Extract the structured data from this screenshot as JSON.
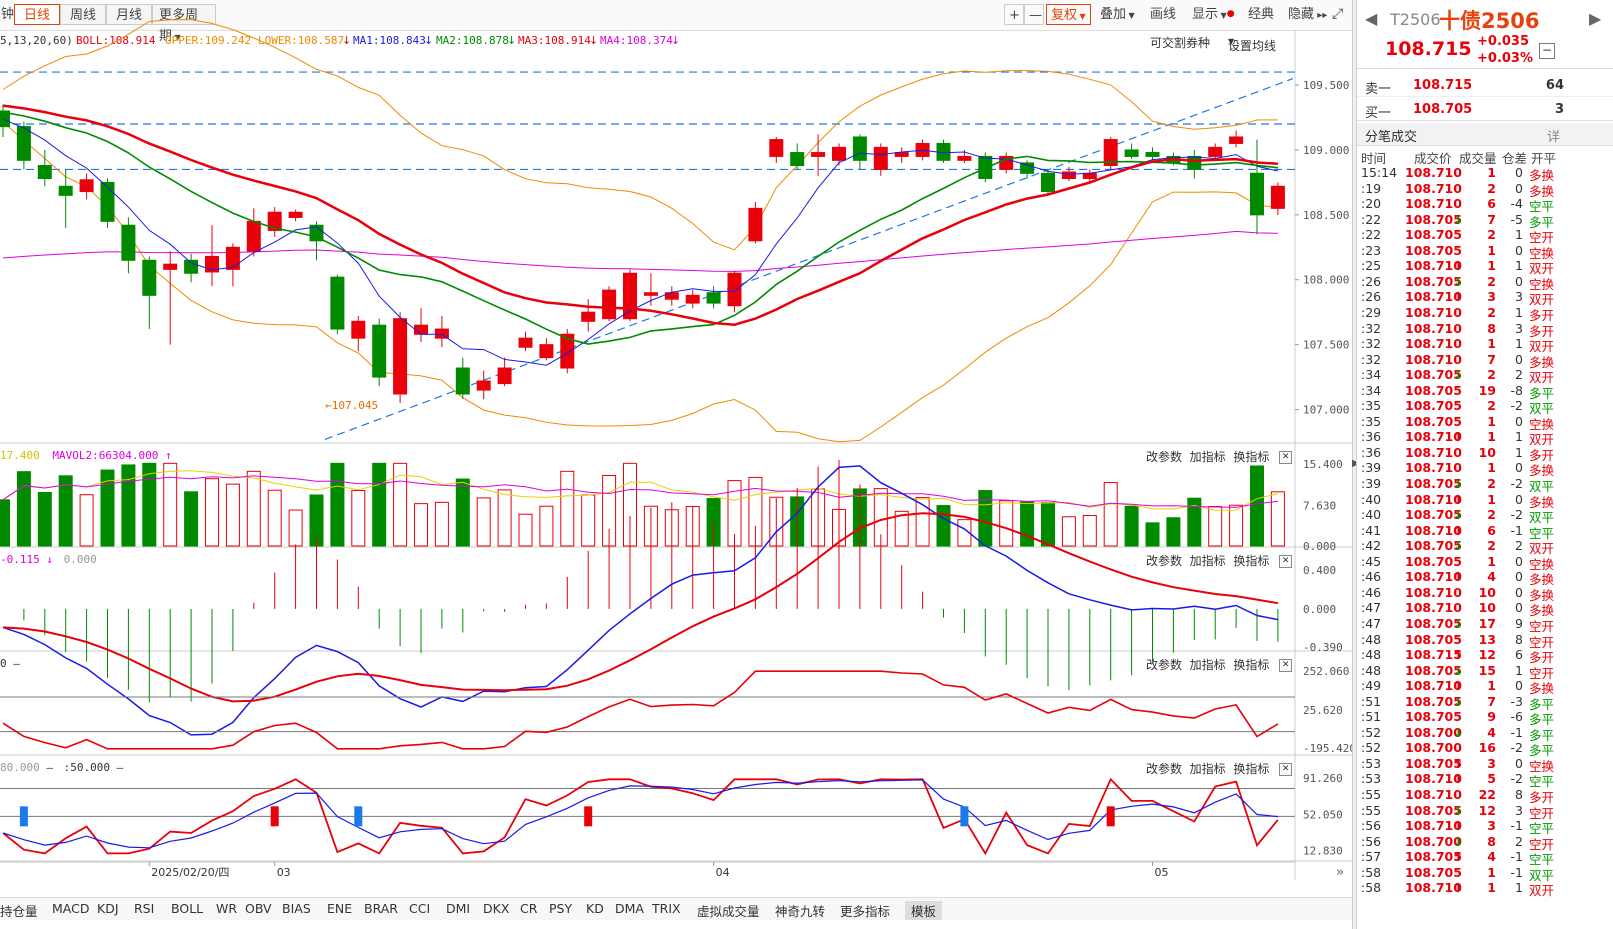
{
  "topbar": {
    "left_cut": "钟",
    "periods": [
      "日线",
      "周线",
      "月线",
      "更多周期"
    ],
    "active_period": "日线",
    "tools": [
      "+",
      "—",
      "复权",
      "叠加",
      "画线",
      "显示",
      "经典",
      "隐藏"
    ]
  },
  "indicator_line": {
    "params": "5,13,20,60)",
    "boll": "BOLL:108.914",
    "upper": "UPPER:109.242",
    "lower": "LOWER:108.587",
    "ma1": "MA1:108.843",
    "ma2": "MA2:108.878",
    "ma3": "MA3:108.914",
    "ma4": "MA4:108.374",
    "tradable": "可交割券种",
    "settings": "设置均线"
  },
  "panel_buttons": [
    "改参数",
    "加指标",
    "换指标"
  ],
  "vol_header": {
    "mavol1": "17.400",
    "mavol2": "MAVOL2:66304.000"
  },
  "macd_header": {
    "v1": "-0.115",
    "v2": "0.000"
  },
  "cci_header": {
    "v1": "0"
  },
  "kdj_header": {
    "v1": "80.000",
    "v2": ":50.000"
  },
  "colors": {
    "up": "#e8000b",
    "down": "#008a00",
    "ma_red": "#e8000b",
    "ma_green": "#008a00",
    "ma_blue": "#1a1ae8",
    "ma_magenta": "#e000e0",
    "boll": "#f08a00",
    "dashed": "#1a7ae8"
  },
  "chart_data": {
    "type": "candlestick",
    "main": {
      "y_ticks": [
        109.5,
        109.0,
        108.5,
        108.0,
        107.5,
        107.0
      ],
      "y_tick_labels": [
        "109.500",
        "109.000",
        "108.500",
        "108.000",
        "107.500",
        "107.000"
      ],
      "ylim": [
        106.75,
        109.77
      ],
      "low_annotation": "107.045",
      "candles": [
        {
          "o": 109.3,
          "c": 109.18,
          "h": 109.35,
          "l": 109.1
        },
        {
          "o": 109.18,
          "c": 108.92,
          "h": 109.22,
          "l": 108.85
        },
        {
          "o": 108.88,
          "c": 108.78,
          "h": 109.0,
          "l": 108.72
        },
        {
          "o": 108.72,
          "c": 108.65,
          "h": 108.85,
          "l": 108.4
        },
        {
          "o": 108.68,
          "c": 108.77,
          "h": 108.82,
          "l": 108.62
        },
        {
          "o": 108.75,
          "c": 108.45,
          "h": 108.78,
          "l": 108.4
        },
        {
          "o": 108.42,
          "c": 108.15,
          "h": 108.48,
          "l": 108.05
        },
        {
          "o": 108.15,
          "c": 107.88,
          "h": 108.18,
          "l": 107.62
        },
        {
          "o": 108.08,
          "c": 108.12,
          "h": 108.22,
          "l": 107.5
        },
        {
          "o": 108.15,
          "c": 108.05,
          "h": 108.2,
          "l": 107.98
        },
        {
          "o": 108.06,
          "c": 108.18,
          "h": 108.42,
          "l": 107.95
        },
        {
          "o": 108.08,
          "c": 108.25,
          "h": 108.28,
          "l": 107.95
        },
        {
          "o": 108.22,
          "c": 108.45,
          "h": 108.55,
          "l": 108.18
        },
        {
          "o": 108.38,
          "c": 108.52,
          "h": 108.56,
          "l": 108.33
        },
        {
          "o": 108.48,
          "c": 108.52,
          "h": 108.54,
          "l": 108.45
        },
        {
          "o": 108.42,
          "c": 108.3,
          "h": 108.45,
          "l": 108.15
        },
        {
          "o": 108.02,
          "c": 107.62,
          "h": 108.04,
          "l": 107.58
        },
        {
          "o": 107.55,
          "c": 107.68,
          "h": 107.72,
          "l": 107.45
        },
        {
          "o": 107.65,
          "c": 107.25,
          "h": 107.7,
          "l": 107.18
        },
        {
          "o": 107.12,
          "c": 107.7,
          "h": 107.75,
          "l": 107.05
        },
        {
          "o": 107.58,
          "c": 107.65,
          "h": 107.78,
          "l": 107.52
        },
        {
          "o": 107.55,
          "c": 107.62,
          "h": 107.72,
          "l": 107.48
        },
        {
          "o": 107.32,
          "c": 107.12,
          "h": 107.4,
          "l": 107.08
        },
        {
          "o": 107.15,
          "c": 107.22,
          "h": 107.3,
          "l": 107.08
        },
        {
          "o": 107.2,
          "c": 107.32,
          "h": 107.4,
          "l": 107.18
        },
        {
          "o": 107.48,
          "c": 107.55,
          "h": 107.6,
          "l": 107.45
        },
        {
          "o": 107.4,
          "c": 107.5,
          "h": 107.55,
          "l": 107.38
        },
        {
          "o": 107.32,
          "c": 107.58,
          "h": 107.62,
          "l": 107.28
        },
        {
          "o": 107.68,
          "c": 107.75,
          "h": 107.85,
          "l": 107.6
        },
        {
          "o": 107.7,
          "c": 107.92,
          "h": 107.95,
          "l": 107.68
        },
        {
          "o": 107.7,
          "c": 108.05,
          "h": 108.08,
          "l": 107.68
        },
        {
          "o": 107.88,
          "c": 107.9,
          "h": 108.05,
          "l": 107.8
        },
        {
          "o": 107.85,
          "c": 107.9,
          "h": 107.95,
          "l": 107.8
        },
        {
          "o": 107.82,
          "c": 107.88,
          "h": 107.92,
          "l": 107.78
        },
        {
          "o": 107.9,
          "c": 107.82,
          "h": 107.95,
          "l": 107.78
        },
        {
          "o": 107.8,
          "c": 108.05,
          "h": 108.07,
          "l": 107.75
        },
        {
          "o": 108.3,
          "c": 108.55,
          "h": 108.6,
          "l": 108.28
        },
        {
          "o": 108.95,
          "c": 109.08,
          "h": 109.1,
          "l": 108.9
        },
        {
          "o": 108.98,
          "c": 108.88,
          "h": 109.05,
          "l": 108.85
        },
        {
          "o": 108.95,
          "c": 108.98,
          "h": 109.12,
          "l": 108.8
        },
        {
          "o": 108.92,
          "c": 109.02,
          "h": 109.05,
          "l": 108.88
        },
        {
          "o": 109.1,
          "c": 108.92,
          "h": 109.12,
          "l": 108.85
        },
        {
          "o": 108.85,
          "c": 109.02,
          "h": 109.05,
          "l": 108.8
        },
        {
          "o": 108.95,
          "c": 108.98,
          "h": 109.02,
          "l": 108.9
        },
        {
          "o": 108.95,
          "c": 109.05,
          "h": 109.08,
          "l": 108.92
        },
        {
          "o": 109.05,
          "c": 108.92,
          "h": 109.08,
          "l": 108.9
        },
        {
          "o": 108.92,
          "c": 108.95,
          "h": 109.0,
          "l": 108.9
        },
        {
          "o": 108.95,
          "c": 108.78,
          "h": 108.98,
          "l": 108.75
        },
        {
          "o": 108.85,
          "c": 108.95,
          "h": 108.98,
          "l": 108.82
        },
        {
          "o": 108.9,
          "c": 108.82,
          "h": 108.92,
          "l": 108.78
        },
        {
          "o": 108.82,
          "c": 108.68,
          "h": 108.85,
          "l": 108.65
        },
        {
          "o": 108.78,
          "c": 108.83,
          "h": 108.87,
          "l": 108.76
        },
        {
          "o": 108.78,
          "c": 108.82,
          "h": 108.85,
          "l": 108.75
        },
        {
          "o": 108.88,
          "c": 109.08,
          "h": 109.1,
          "l": 108.85
        },
        {
          "o": 109.0,
          "c": 108.95,
          "h": 109.05,
          "l": 108.93
        },
        {
          "o": 108.98,
          "c": 108.95,
          "h": 109.02,
          "l": 108.92
        },
        {
          "o": 108.95,
          "c": 108.9,
          "h": 108.98,
          "l": 108.88
        },
        {
          "o": 108.95,
          "c": 108.85,
          "h": 109.0,
          "l": 108.78
        },
        {
          "o": 108.95,
          "c": 109.02,
          "h": 109.05,
          "l": 108.92
        },
        {
          "o": 109.05,
          "c": 109.1,
          "h": 109.15,
          "l": 109.02
        },
        {
          "o": 108.82,
          "c": 108.5,
          "h": 109.08,
          "l": 108.35
        },
        {
          "o": 108.55,
          "c": 108.72,
          "h": 108.75,
          "l": 108.5
        }
      ]
    },
    "volume": {
      "y_tick_labels": [
        "15.400",
        "7.630",
        "0.000"
      ],
      "ymax": 16.5
    },
    "macd": {
      "y_tick_labels": [
        "0.400",
        "0.000",
        "-0.390"
      ],
      "ylim": [
        -0.42,
        0.48
      ]
    },
    "cci": {
      "y_tick_labels": [
        "252.060",
        "25.620",
        "-195.420"
      ],
      "ylim": [
        -230,
        280
      ]
    },
    "kdj": {
      "y_tick_labels": [
        "91.260",
        "52.050",
        "12.830"
      ],
      "ylim": [
        5,
        100
      ]
    },
    "x_labels": [
      {
        "i": 7,
        "t": "2025/02/20/四"
      },
      {
        "i": 13,
        "t": "03"
      },
      {
        "i": 34,
        "t": "04"
      },
      {
        "i": 55,
        "t": "05"
      }
    ]
  },
  "bottom_tabs": [
    "持仓量",
    "MACD",
    "KDJ",
    "RSI",
    "BOLL",
    "WR",
    "OBV",
    "BIAS",
    "ENE",
    "BRAR",
    "CCI",
    "DMI",
    "DKX",
    "CR",
    "PSY",
    "KD",
    "DMA",
    "TRIX",
    "虚拟成交量",
    "神奇九转",
    "更多指标",
    "模板"
  ],
  "active_bottom_tab": "模板",
  "quote": {
    "code": "T2506",
    "name": "十债2506",
    "price": "108.715",
    "change": "+0.035",
    "change_pct": "+0.03%",
    "sell_label": "卖一",
    "sell_price": "108.715",
    "sell_qty": "64",
    "buy_label": "买一",
    "buy_price": "108.705",
    "buy_qty": "3",
    "ticks_title": "分笔成交",
    "ticks_more": "详",
    "tick_headers": [
      "时间",
      "成交价",
      "成交量",
      "仓差",
      "开平"
    ]
  },
  "ticks": [
    [
      "15:14",
      "108.710",
      "",
      "1",
      "0",
      "多换"
    ],
    [
      ":19",
      "108.710",
      "",
      "2",
      "0",
      "多换"
    ],
    [
      ":20",
      "108.710",
      "",
      "6",
      "-4",
      "空平"
    ],
    [
      ":22",
      "108.705",
      "down",
      "7",
      "-5",
      "多平"
    ],
    [
      ":22",
      "108.705",
      "",
      "2",
      "1",
      "空开"
    ],
    [
      ":23",
      "108.705",
      "",
      "1",
      "0",
      "空换"
    ],
    [
      ":25",
      "108.710",
      "up",
      "1",
      "1",
      "双开"
    ],
    [
      ":26",
      "108.705",
      "down",
      "2",
      "0",
      "空换"
    ],
    [
      ":26",
      "108.710",
      "up",
      "3",
      "3",
      "双开"
    ],
    [
      ":29",
      "108.710",
      "",
      "2",
      "1",
      "多开"
    ],
    [
      ":32",
      "108.710",
      "",
      "8",
      "3",
      "多开"
    ],
    [
      ":32",
      "108.710",
      "",
      "1",
      "1",
      "双开"
    ],
    [
      ":32",
      "108.710",
      "",
      "7",
      "0",
      "多换"
    ],
    [
      ":34",
      "108.705",
      "down",
      "2",
      "2",
      "双开"
    ],
    [
      ":34",
      "108.705",
      "",
      "19",
      "-8",
      "多平"
    ],
    [
      ":35",
      "108.705",
      "",
      "2",
      "-2",
      "双平"
    ],
    [
      ":35",
      "108.705",
      "",
      "1",
      "0",
      "空换"
    ],
    [
      ":36",
      "108.710",
      "up",
      "1",
      "1",
      "双开"
    ],
    [
      ":36",
      "108.710",
      "",
      "10",
      "1",
      "多开"
    ],
    [
      ":39",
      "108.710",
      "",
      "1",
      "0",
      "多换"
    ],
    [
      ":39",
      "108.705",
      "down",
      "2",
      "-2",
      "双平"
    ],
    [
      ":40",
      "108.710",
      "up",
      "1",
      "0",
      "多换"
    ],
    [
      ":40",
      "108.705",
      "down",
      "2",
      "-2",
      "双平"
    ],
    [
      ":41",
      "108.710",
      "up",
      "6",
      "-1",
      "空平"
    ],
    [
      ":42",
      "108.705",
      "down",
      "2",
      "2",
      "双开"
    ],
    [
      ":45",
      "108.705",
      "",
      "1",
      "0",
      "空换"
    ],
    [
      ":46",
      "108.710",
      "up",
      "4",
      "0",
      "多换"
    ],
    [
      ":46",
      "108.710",
      "",
      "10",
      "0",
      "多换"
    ],
    [
      ":47",
      "108.710",
      "",
      "10",
      "0",
      "多换"
    ],
    [
      ":47",
      "108.705",
      "down",
      "17",
      "9",
      "空开"
    ],
    [
      ":48",
      "108.705",
      "",
      "13",
      "8",
      "空开"
    ],
    [
      ":48",
      "108.715",
      "up",
      "12",
      "6",
      "多开"
    ],
    [
      ":48",
      "108.705",
      "down",
      "15",
      "1",
      "空开"
    ],
    [
      ":49",
      "108.710",
      "up",
      "1",
      "0",
      "多换"
    ],
    [
      ":51",
      "108.705",
      "down",
      "7",
      "-3",
      "多平"
    ],
    [
      ":51",
      "108.705",
      "",
      "9",
      "-6",
      "多平"
    ],
    [
      ":52",
      "108.700",
      "down",
      "4",
      "-1",
      "多平"
    ],
    [
      ":52",
      "108.700",
      "",
      "16",
      "-2",
      "多平"
    ],
    [
      ":53",
      "108.705",
      "up",
      "3",
      "0",
      "空换"
    ],
    [
      ":53",
      "108.710",
      "up",
      "5",
      "-2",
      "空平"
    ],
    [
      ":55",
      "108.710",
      "",
      "22",
      "8",
      "多开"
    ],
    [
      ":55",
      "108.705",
      "down",
      "12",
      "3",
      "空开"
    ],
    [
      ":56",
      "108.710",
      "up",
      "3",
      "-1",
      "空平"
    ],
    [
      ":56",
      "108.700",
      "down",
      "8",
      "2",
      "空开"
    ],
    [
      ":57",
      "108.705",
      "up",
      "4",
      "-1",
      "空平"
    ],
    [
      ":58",
      "108.705",
      "",
      "1",
      "-1",
      "双平"
    ],
    [
      ":58",
      "108.710",
      "up",
      "1",
      "1",
      "双开"
    ]
  ]
}
